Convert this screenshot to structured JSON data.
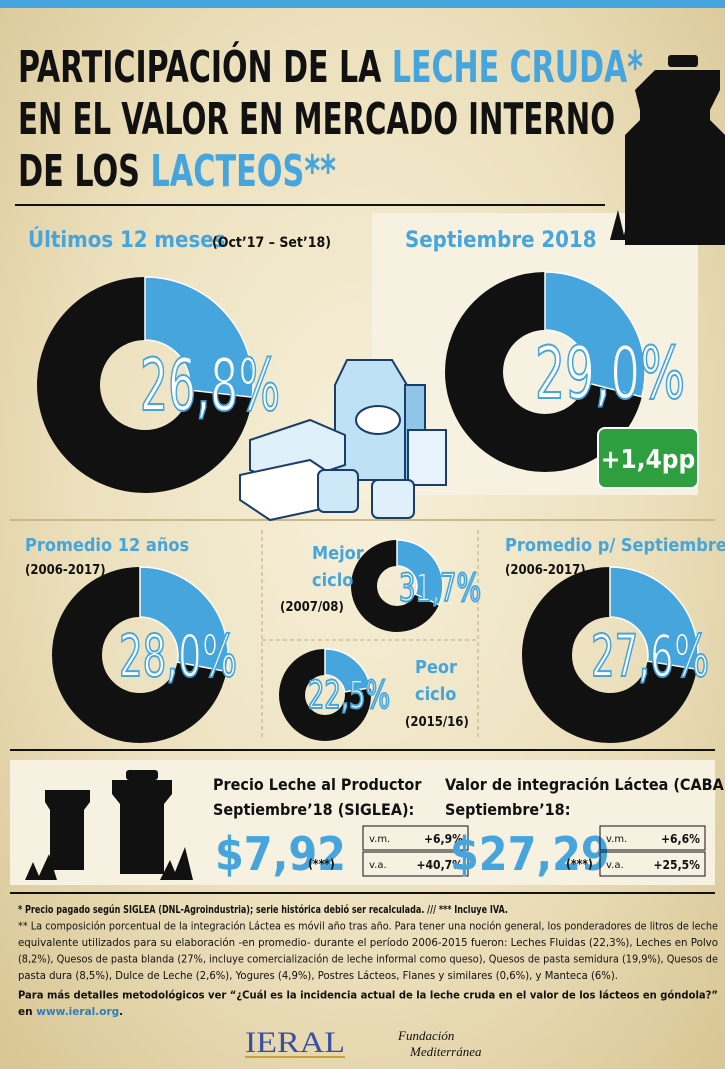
{
  "header": {
    "title_parts": [
      "PARTICIPACIÓN DE LA ",
      "LECHE CRUDA*",
      "EN EL VALOR EN MERCADO INTERNO",
      "DE LOS ",
      "LACTEOS**"
    ]
  },
  "chart_data": [
    {
      "type": "donut",
      "title": "Últimos 12 meses",
      "subtitle": "(Oct’17 – Set’18)",
      "values": [
        26.8
      ],
      "value_labels": [
        "26,8%"
      ],
      "color": "#45a5dc"
    },
    {
      "type": "donut",
      "title": "Septiembre 2018",
      "values": [
        29.0
      ],
      "value_labels": [
        "29,0%"
      ],
      "color": "#45a5dc",
      "annotation": "+1,4pp"
    },
    {
      "type": "donut",
      "title": "Promedio 12 años",
      "subtitle": "(2006-2017)",
      "values": [
        28.0
      ],
      "value_labels": [
        "28,0%"
      ],
      "color": "#45a5dc"
    },
    {
      "type": "donut",
      "title": [
        "Mejor",
        "ciclo"
      ],
      "subtitle": "(2007/08)",
      "values": [
        31.7
      ],
      "value_labels": [
        "31,7%"
      ],
      "color": "#45a5dc"
    },
    {
      "type": "donut",
      "title": [
        "Peor",
        "ciclo"
      ],
      "subtitle": "(2015/16)",
      "values": [
        22.5
      ],
      "value_labels": [
        "22,5%"
      ],
      "color": "#45a5dc"
    },
    {
      "type": "donut",
      "title": "Promedio p/ Septiembre",
      "subtitle": "(2006-2017)",
      "values": [
        27.6
      ],
      "value_labels": [
        "27,6%"
      ],
      "color": "#45a5dc"
    }
  ],
  "prices": [
    {
      "title": "Precio Leche al Productor",
      "subtitle": "Septiembre’18  (SIGLEA):",
      "value": "$7,92",
      "note": "(***)",
      "changes": [
        [
          "v.m.",
          "+6,9%"
        ],
        [
          "v.a.",
          "+40,7%"
        ]
      ]
    },
    {
      "title": "Valor de integración Láctea (CABA)**",
      "subtitle": "Septiembre’18:",
      "value": "$27,29",
      "note": "(***)",
      "changes": [
        [
          "v.m.",
          "+6,6%"
        ],
        [
          "v.a.",
          "+25,5%"
        ]
      ]
    }
  ],
  "footnotes": {
    "lines": [
      "* Precio pagado según SIGLEA (DNL-Agroindustria); serie histórica debió ser recalculada.  ///   *** Incluye IVA.",
      "** La composición porcentual de la integración Láctea es móvil año tras año. Para tener una noción general, los ponderadores de litros de leche",
      "equivalente utilizados  para su elaboración -en promedio- durante el período 2006-2015 fueron: Leches Fluidas (22,3%), Leches en Polvo",
      "(8,2%), Quesos de pasta blanda (27%, incluye comercialización de leche informal como queso), Quesos de pasta semidura (19,9%), Quesos de",
      "pasta dura (8,5%), Dulce de Leche (2,6%),  Yogures (4,9%), Postres Lácteos, Flanes y similares (0,6%), y Manteca (6%).",
      "Para más detalles metodológicos ver “¿Cuál es la incidencia actual de la leche cruda en el valor de los lácteos en góndola?”"
    ],
    "link_prefix": "en ",
    "link": "www.ieral.org",
    "link_suffix": "."
  },
  "logos": [
    "IERAL",
    "Fundación",
    "Mediterránea"
  ]
}
